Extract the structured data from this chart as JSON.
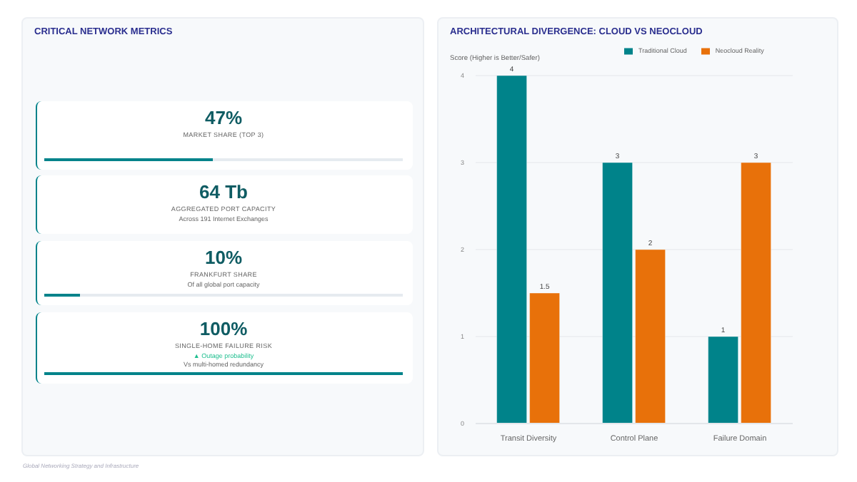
{
  "chart_data": [
    {
      "type": "other",
      "title": "CRITICAL NETWORK METRICS",
      "categories": [
        "MARKET SHARE (TOP 3)",
        "AGGREGATED PORT CAPACITY",
        "FRANKFURT SHARE",
        "SINGLE-HOME FAILURE RISK"
      ],
      "values": [
        47,
        null,
        10,
        100
      ],
      "value_labels": [
        "47%",
        "64 Tb",
        "10%",
        "100%"
      ],
      "annotations": [
        {
          "text": "Across 191 Internet Exchanges",
          "x": "AGGREGATED PORT CAPACITY"
        },
        {
          "text": "Of all global port capacity",
          "x": "FRANKFURT SHARE"
        },
        {
          "text": "▲ Outage probability",
          "x": "SINGLE-HOME FAILURE RISK"
        },
        {
          "text": "Vs multi-homed redundancy",
          "x": "SINGLE-HOME FAILURE RISK"
        },
        "Global Networking Strategy and Infrastructure"
      ]
    },
    {
      "type": "bar",
      "title": "ARCHITECTURAL DIVERGENCE: CLOUD VS NEOCLOUD",
      "ylabel": "Score (Higher is Better/Safer)",
      "categories": [
        "Transit Diversity",
        "Control Plane",
        "Failure Domain"
      ],
      "series": [
        {
          "name": "Traditional Cloud",
          "color": "#00838a",
          "values": [
            4,
            3,
            1
          ]
        },
        {
          "name": "Neocloud Reality",
          "color": "#e8710a",
          "values": [
            1.5,
            2,
            3
          ]
        }
      ],
      "ylim": [
        0,
        4
      ],
      "yticks": [
        0,
        1,
        2,
        3,
        4
      ],
      "grid": "y",
      "legend": "top",
      "data_labels": true
    }
  ]
}
